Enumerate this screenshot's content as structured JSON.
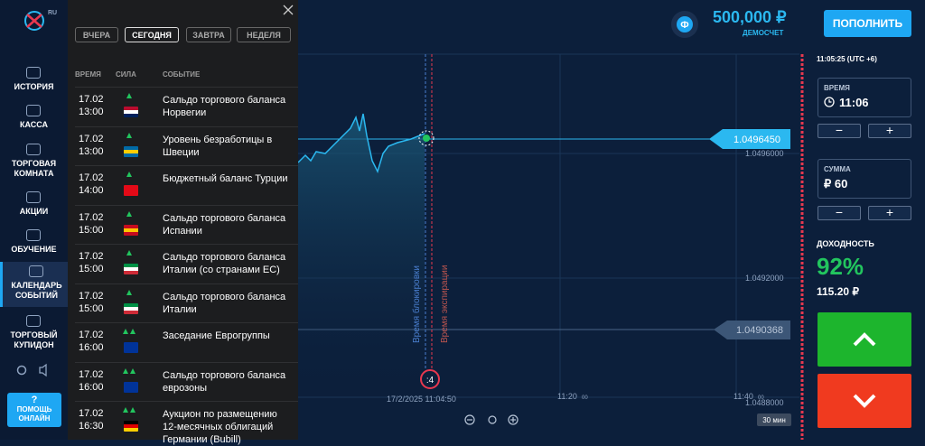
{
  "logo": {
    "region": "RU"
  },
  "sidebar": {
    "items": [
      "ИСТОРИЯ",
      "КАССА",
      "ТОРГОВАЯ КОМНАТА",
      "АКЦИИ",
      "ОБУЧЕНИЕ",
      "КАЛЕНДАРЬ СОБЫТИЙ",
      "ТОРГОВЫЙ КУПИДОН"
    ],
    "active": 5,
    "help": {
      "icon": "?",
      "label": "ПОМОЩЬ ОНЛАЙН"
    }
  },
  "calendar": {
    "tabs": [
      "ВЧЕРА",
      "СЕГОДНЯ",
      "ЗАВТРА",
      "НЕДЕЛЯ"
    ],
    "active_tab": 1,
    "columns": [
      "ВРЕМЯ",
      "СИЛА",
      "СОБЫТИЕ"
    ],
    "rows": [
      {
        "date": "17.02",
        "time": "13:00",
        "strength": 1,
        "flag": [
          "#ba0c2f",
          "#ffffff",
          "#00205b"
        ],
        "event": "Сальдо торгового баланса Норвегии"
      },
      {
        "date": "17.02",
        "time": "13:00",
        "strength": 1,
        "flag": [
          "#006aa7",
          "#fecc00",
          "#006aa7"
        ],
        "event": "Уровень безработицы в Швеции"
      },
      {
        "date": "17.02",
        "time": "14:00",
        "strength": 1,
        "flag": [
          "#e30a17",
          "#e30a17",
          "#e30a17"
        ],
        "event": "Бюджетный баланс Турции"
      },
      {
        "date": "17.02",
        "time": "15:00",
        "strength": 1,
        "flag": [
          "#c60b1e",
          "#ffc400",
          "#c60b1e"
        ],
        "event": "Сальдо торгового баланса Испании"
      },
      {
        "date": "17.02",
        "time": "15:00",
        "strength": 1,
        "flag": [
          "#009246",
          "#ffffff",
          "#ce2b37"
        ],
        "event": "Сальдо торгового баланса Италии (со странами ЕС)"
      },
      {
        "date": "17.02",
        "time": "15:00",
        "strength": 1,
        "flag": [
          "#009246",
          "#ffffff",
          "#ce2b37"
        ],
        "event": "Сальдо торгового баланса Италии"
      },
      {
        "date": "17.02",
        "time": "16:00",
        "strength": 2,
        "flag": [
          "#003399",
          "#003399",
          "#003399"
        ],
        "event": "Заседание Еврогруппы"
      },
      {
        "date": "17.02",
        "time": "16:00",
        "strength": 2,
        "flag": [
          "#003399",
          "#003399",
          "#003399"
        ],
        "event": "Сальдо торгового баланса еврозоны"
      },
      {
        "date": "17.02",
        "time": "16:30",
        "strength": 2,
        "flag": [
          "#000000",
          "#dd0000",
          "#ffce00"
        ],
        "event": "Аукцион по размещению 12-месячных облигаций Германии (Bubill)"
      }
    ]
  },
  "account": {
    "avatar": "Ф",
    "balance": "500,000 ₽",
    "type": "ДЕМОСЧЕТ",
    "deposit": "ПОПОЛНИТЬ"
  },
  "chart": {
    "current_price": "1.0496450",
    "prices": [
      "1.0496000",
      "1.0492000",
      "1.0488000"
    ],
    "other_price": "1.0490368",
    "lock_label": "Время блокировки",
    "expiry_label": "Время экспирации",
    "timer": ":4",
    "start_time": "17/2/2025 11:04:50",
    "times": [
      "11:20",
      "11:40"
    ],
    "seconds": "00",
    "interval": "30 мин"
  },
  "trade": {
    "clock": "11:05:25 (UTC +6)",
    "time_label": "ВРЕМЯ",
    "time_value": "11:06",
    "amount_label": "СУММА",
    "amount_value": "₽ 60",
    "payout_label": "ДОХОДНОСТЬ",
    "payout_pct": "92%",
    "payout_value": "115.20 ₽"
  }
}
